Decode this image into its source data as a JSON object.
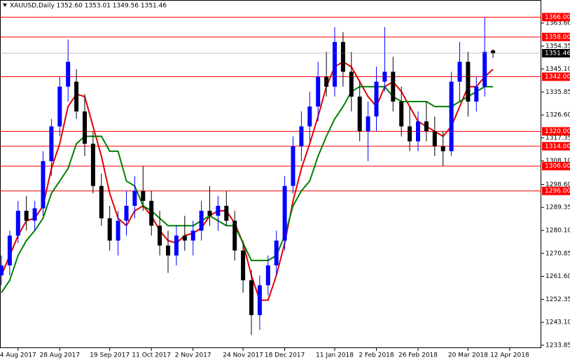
{
  "chart_data": {
    "type": "candlestick",
    "title": "XAUUSD,Daily  1352.60 1353.01 1349.56 1351.46",
    "categories": [
      null,
      null,
      "4 Aug 2017",
      null,
      null,
      null,
      null,
      "28 Aug 2017",
      null,
      null,
      null,
      null,
      null,
      "19 Sep 2017",
      null,
      null,
      null,
      null,
      "11 Oct 2017",
      null,
      null,
      null,
      null,
      "2 Nov 2017",
      null,
      null,
      null,
      null,
      null,
      "24 Nov 2017",
      null,
      null,
      null,
      null,
      "18 Dec 2017",
      null,
      null,
      null,
      null,
      null,
      "11 Jan 2018",
      null,
      null,
      null,
      null,
      "2 Feb 2018",
      null,
      null,
      null,
      null,
      "26 Feb 2018",
      null,
      null,
      null,
      null,
      null,
      "20 Mar 2018",
      null,
      null,
      null,
      null,
      "12 Apr 2018"
    ],
    "open": [
      1262,
      1266,
      1278,
      1288,
      1284,
      1289,
      1308,
      1322,
      1338,
      1340,
      1328,
      1315,
      1298,
      1285,
      1276,
      1284,
      1290,
      1296,
      1292,
      1282,
      1274,
      1270,
      1278,
      1276,
      1280,
      1288,
      1286,
      1290,
      1284,
      1272,
      1260,
      1246,
      1258,
      1266,
      1276,
      1298,
      1314,
      1322,
      1330,
      1342,
      1338,
      1356,
      1344,
      1334,
      1320,
      1326,
      1340,
      1344,
      1332,
      1322,
      1316,
      1324,
      1320,
      1314,
      1312,
      1340,
      1348,
      1332,
      1338,
      1352.6,
      null,
      null
    ],
    "high": [
      1270,
      1280,
      1292,
      1294,
      1292,
      1312,
      1325,
      1342,
      1357,
      1345,
      1335,
      1320,
      1303,
      1290,
      1288,
      1296,
      1302,
      1306,
      1296,
      1288,
      1280,
      1282,
      1286,
      1284,
      1292,
      1298,
      1294,
      1296,
      1288,
      1276,
      1264,
      1262,
      1270,
      1280,
      1302,
      1318,
      1328,
      1336,
      1348,
      1352,
      1362,
      1360,
      1352,
      1340,
      1332,
      1346,
      1362,
      1350,
      1338,
      1330,
      1328,
      1332,
      1326,
      1320,
      1344,
      1356,
      1352,
      1342,
      1366,
      1353.01,
      null,
      null
    ],
    "low": [
      1258,
      1262,
      1275,
      1280,
      1280,
      1286,
      1302,
      1318,
      1332,
      1325,
      1310,
      1295,
      1282,
      1272,
      1270,
      1278,
      1285,
      1288,
      1278,
      1270,
      1263,
      1266,
      1272,
      1270,
      1276,
      1282,
      1280,
      1282,
      1268,
      1255,
      1238,
      1240,
      1254,
      1262,
      1272,
      1295,
      1308,
      1316,
      1324,
      1334,
      1334,
      1338,
      1328,
      1316,
      1308,
      1320,
      1336,
      1328,
      1318,
      1312,
      1312,
      1316,
      1310,
      1306,
      1310,
      1332,
      1326,
      1328,
      1334,
      1349.56,
      null,
      null
    ],
    "close": [
      1266,
      1278,
      1288,
      1284,
      1289,
      1308,
      1322,
      1338,
      1348,
      1328,
      1315,
      1298,
      1285,
      1276,
      1284,
      1290,
      1296,
      1292,
      1282,
      1274,
      1270,
      1278,
      1276,
      1280,
      1288,
      1286,
      1290,
      1284,
      1272,
      1260,
      1246,
      1258,
      1266,
      1276,
      1298,
      1314,
      1322,
      1330,
      1342,
      1338,
      1356,
      1344,
      1334,
      1320,
      1326,
      1340,
      1344,
      1332,
      1322,
      1316,
      1324,
      1320,
      1314,
      1312,
      1340,
      1348,
      1332,
      1338,
      1352,
      1351.46,
      null,
      null
    ],
    "up_color": "#0000ff",
    "down_color": "#000000",
    "lines": [
      {
        "color": "#e00000",
        "values": [
          1262,
          1270,
          1278,
          1284,
          1285,
          1290,
          1305,
          1315,
          1330,
          1335,
          1334,
          1322,
          1310,
          1295,
          1285,
          1282,
          1288,
          1290,
          1286,
          1280,
          1276,
          1275,
          1278,
          1279,
          1281,
          1286,
          1288,
          1288,
          1283,
          1275,
          1262,
          1252,
          1252,
          1262,
          1275,
          1292,
          1305,
          1315,
          1326,
          1338,
          1346,
          1348,
          1346,
          1340,
          1334,
          1330,
          1338,
          1340,
          1336,
          1330,
          1324,
          1322,
          1320,
          1318,
          1322,
          1330,
          1338,
          1338,
          1342,
          1345,
          null,
          null
        ]
      },
      {
        "color": "#008000",
        "values": [
          1255,
          1260,
          1270,
          1276,
          1280,
          1285,
          1295,
          1300,
          1305,
          1315,
          1318,
          1318,
          1318,
          1312,
          1312,
          1300,
          1298,
          1290,
          1288,
          1285,
          1282,
          1282,
          1282,
          1282,
          1284,
          1286,
          1284,
          1282,
          1282,
          1275,
          1268,
          1268,
          1268,
          1270,
          1278,
          1290,
          1296,
          1300,
          1310,
          1318,
          1325,
          1330,
          1336,
          1338,
          1338,
          1338,
          1338,
          1334,
          1332,
          1332,
          1332,
          1332,
          1330,
          1330,
          1330,
          1332,
          1334,
          1336,
          1338,
          1338,
          null,
          null
        ]
      }
    ],
    "levels": [
      {
        "value": 1366,
        "label": "1366.00"
      },
      {
        "value": 1358,
        "label": "1358.00"
      },
      {
        "value": 1342,
        "label": "1342.00"
      },
      {
        "value": 1320,
        "label": "1320.00"
      },
      {
        "value": 1314,
        "label": "1314.00"
      },
      {
        "value": 1306,
        "label": "1306.00"
      },
      {
        "value": 1296,
        "label": "1296.00"
      }
    ],
    "level_color": "#ff0000",
    "ylim": [
      1232.7,
      1372.9
    ],
    "yticks": [
      {
        "value": 1363.6,
        "label": "1363.60"
      },
      {
        "value": 1354.35,
        "label": "1354.35"
      },
      {
        "value": 1345.1,
        "label": "1345.10"
      },
      {
        "value": 1335.85,
        "label": "1335.85"
      },
      {
        "value": 1326.6,
        "label": "1326.60"
      },
      {
        "value": 1317.35,
        "label": "1317.35"
      },
      {
        "value": 1308.1,
        "label": "1308.10"
      },
      {
        "value": 1298.6,
        "label": "1298.60"
      },
      {
        "value": 1289.35,
        "label": "1289.35"
      },
      {
        "value": 1280.1,
        "label": "1280.10"
      },
      {
        "value": 1270.85,
        "label": "1270.85"
      },
      {
        "value": 1261.6,
        "label": "1261.60"
      },
      {
        "value": 1252.35,
        "label": "1252.35"
      },
      {
        "value": 1243.1,
        "label": "1243.10"
      },
      {
        "value": 1233.85,
        "label": "1233.85"
      }
    ]
  }
}
